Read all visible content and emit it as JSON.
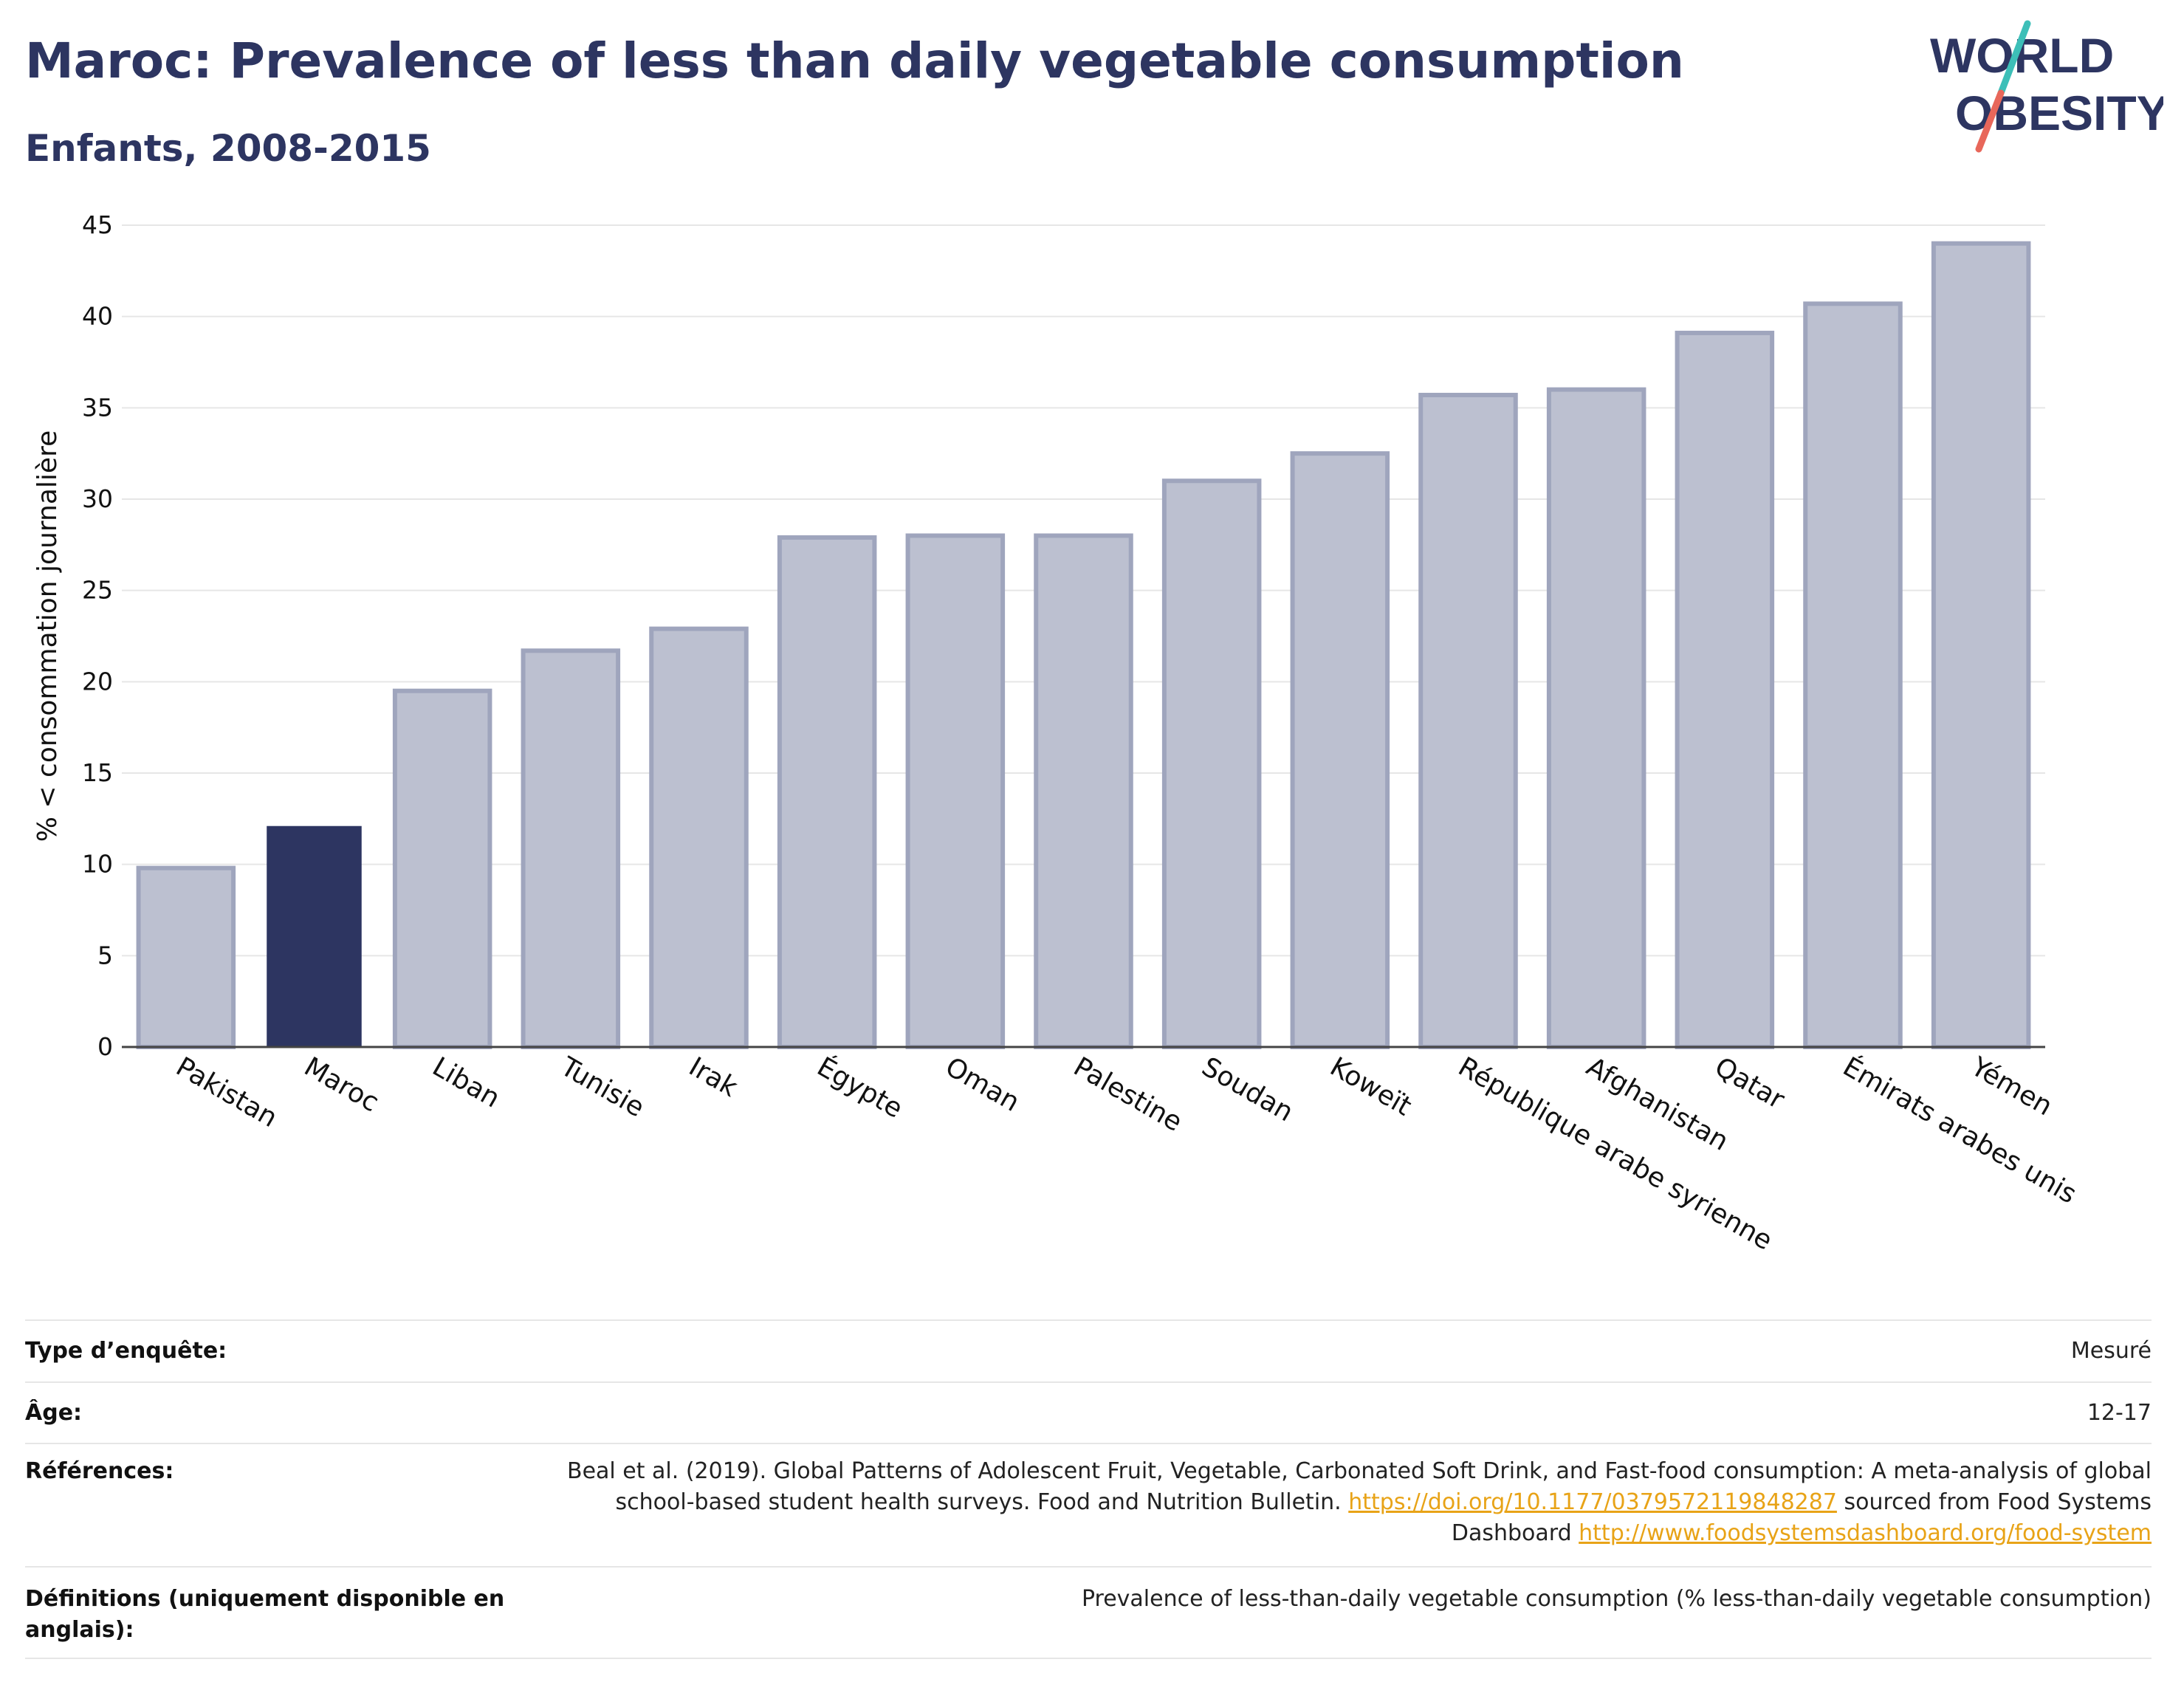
{
  "header": {
    "title": "Maroc: Prevalence of less than daily vegetable consumption",
    "subtitle": "Enfants, 2008-2015"
  },
  "logo": {
    "line1": "WORLD",
    "line2": "OBESITY",
    "colors": {
      "text": "#2d3561",
      "slash_top": "#3dbfb8",
      "slash_bottom": "#e8675a"
    }
  },
  "colors": {
    "highlight": "#2d3561",
    "bar_fill": "#bcc0d0",
    "bar_stroke": "#9fa5bd",
    "grid": "#e6e6e6",
    "link": "#e8a317"
  },
  "chart_data": {
    "type": "bar",
    "ylabel": "% < consommation journalière",
    "ylim": [
      0,
      45
    ],
    "yticks": [
      0,
      5,
      10,
      15,
      20,
      25,
      30,
      35,
      40,
      45
    ],
    "grid": true,
    "highlight": "Maroc",
    "categories": [
      "Pakistan",
      "Maroc",
      "Liban",
      "Tunisie",
      "Irak",
      "Égypte",
      "Oman",
      "Palestine",
      "Soudan",
      "Koweït",
      "République arabe syrienne",
      "Afghanistan",
      "Qatar",
      "Émirats arabes unis",
      "Yémen"
    ],
    "values": [
      9.8,
      12.1,
      19.5,
      21.7,
      22.9,
      27.9,
      28.0,
      28.0,
      31.0,
      32.5,
      35.7,
      36.0,
      39.1,
      40.7,
      44.0
    ]
  },
  "meta": {
    "survey_label": "Type d’enquête:",
    "survey_value": "Mesuré",
    "age_label": "Âge:",
    "age_value": "12-17",
    "ref_label": "Références:",
    "ref_text1": "Beal et al. (2019). Global Patterns of Adolescent Fruit, Vegetable, Carbonated Soft Drink, and Fast-food consumption: A meta-analysis of global school-based student health surveys. Food and Nutrition Bulletin. ",
    "ref_link1": "https://doi.org/10.1177/0379572119848287",
    "ref_text2": " sourced from Food Systems Dashboard ",
    "ref_link2": "http://www.foodsystemsdashboard.org/food-system",
    "def_label": "Définitions (uniquement disponible en anglais):",
    "def_value": "Prevalence of less-than-daily vegetable consumption (% less-than-daily vegetable consumption)"
  }
}
